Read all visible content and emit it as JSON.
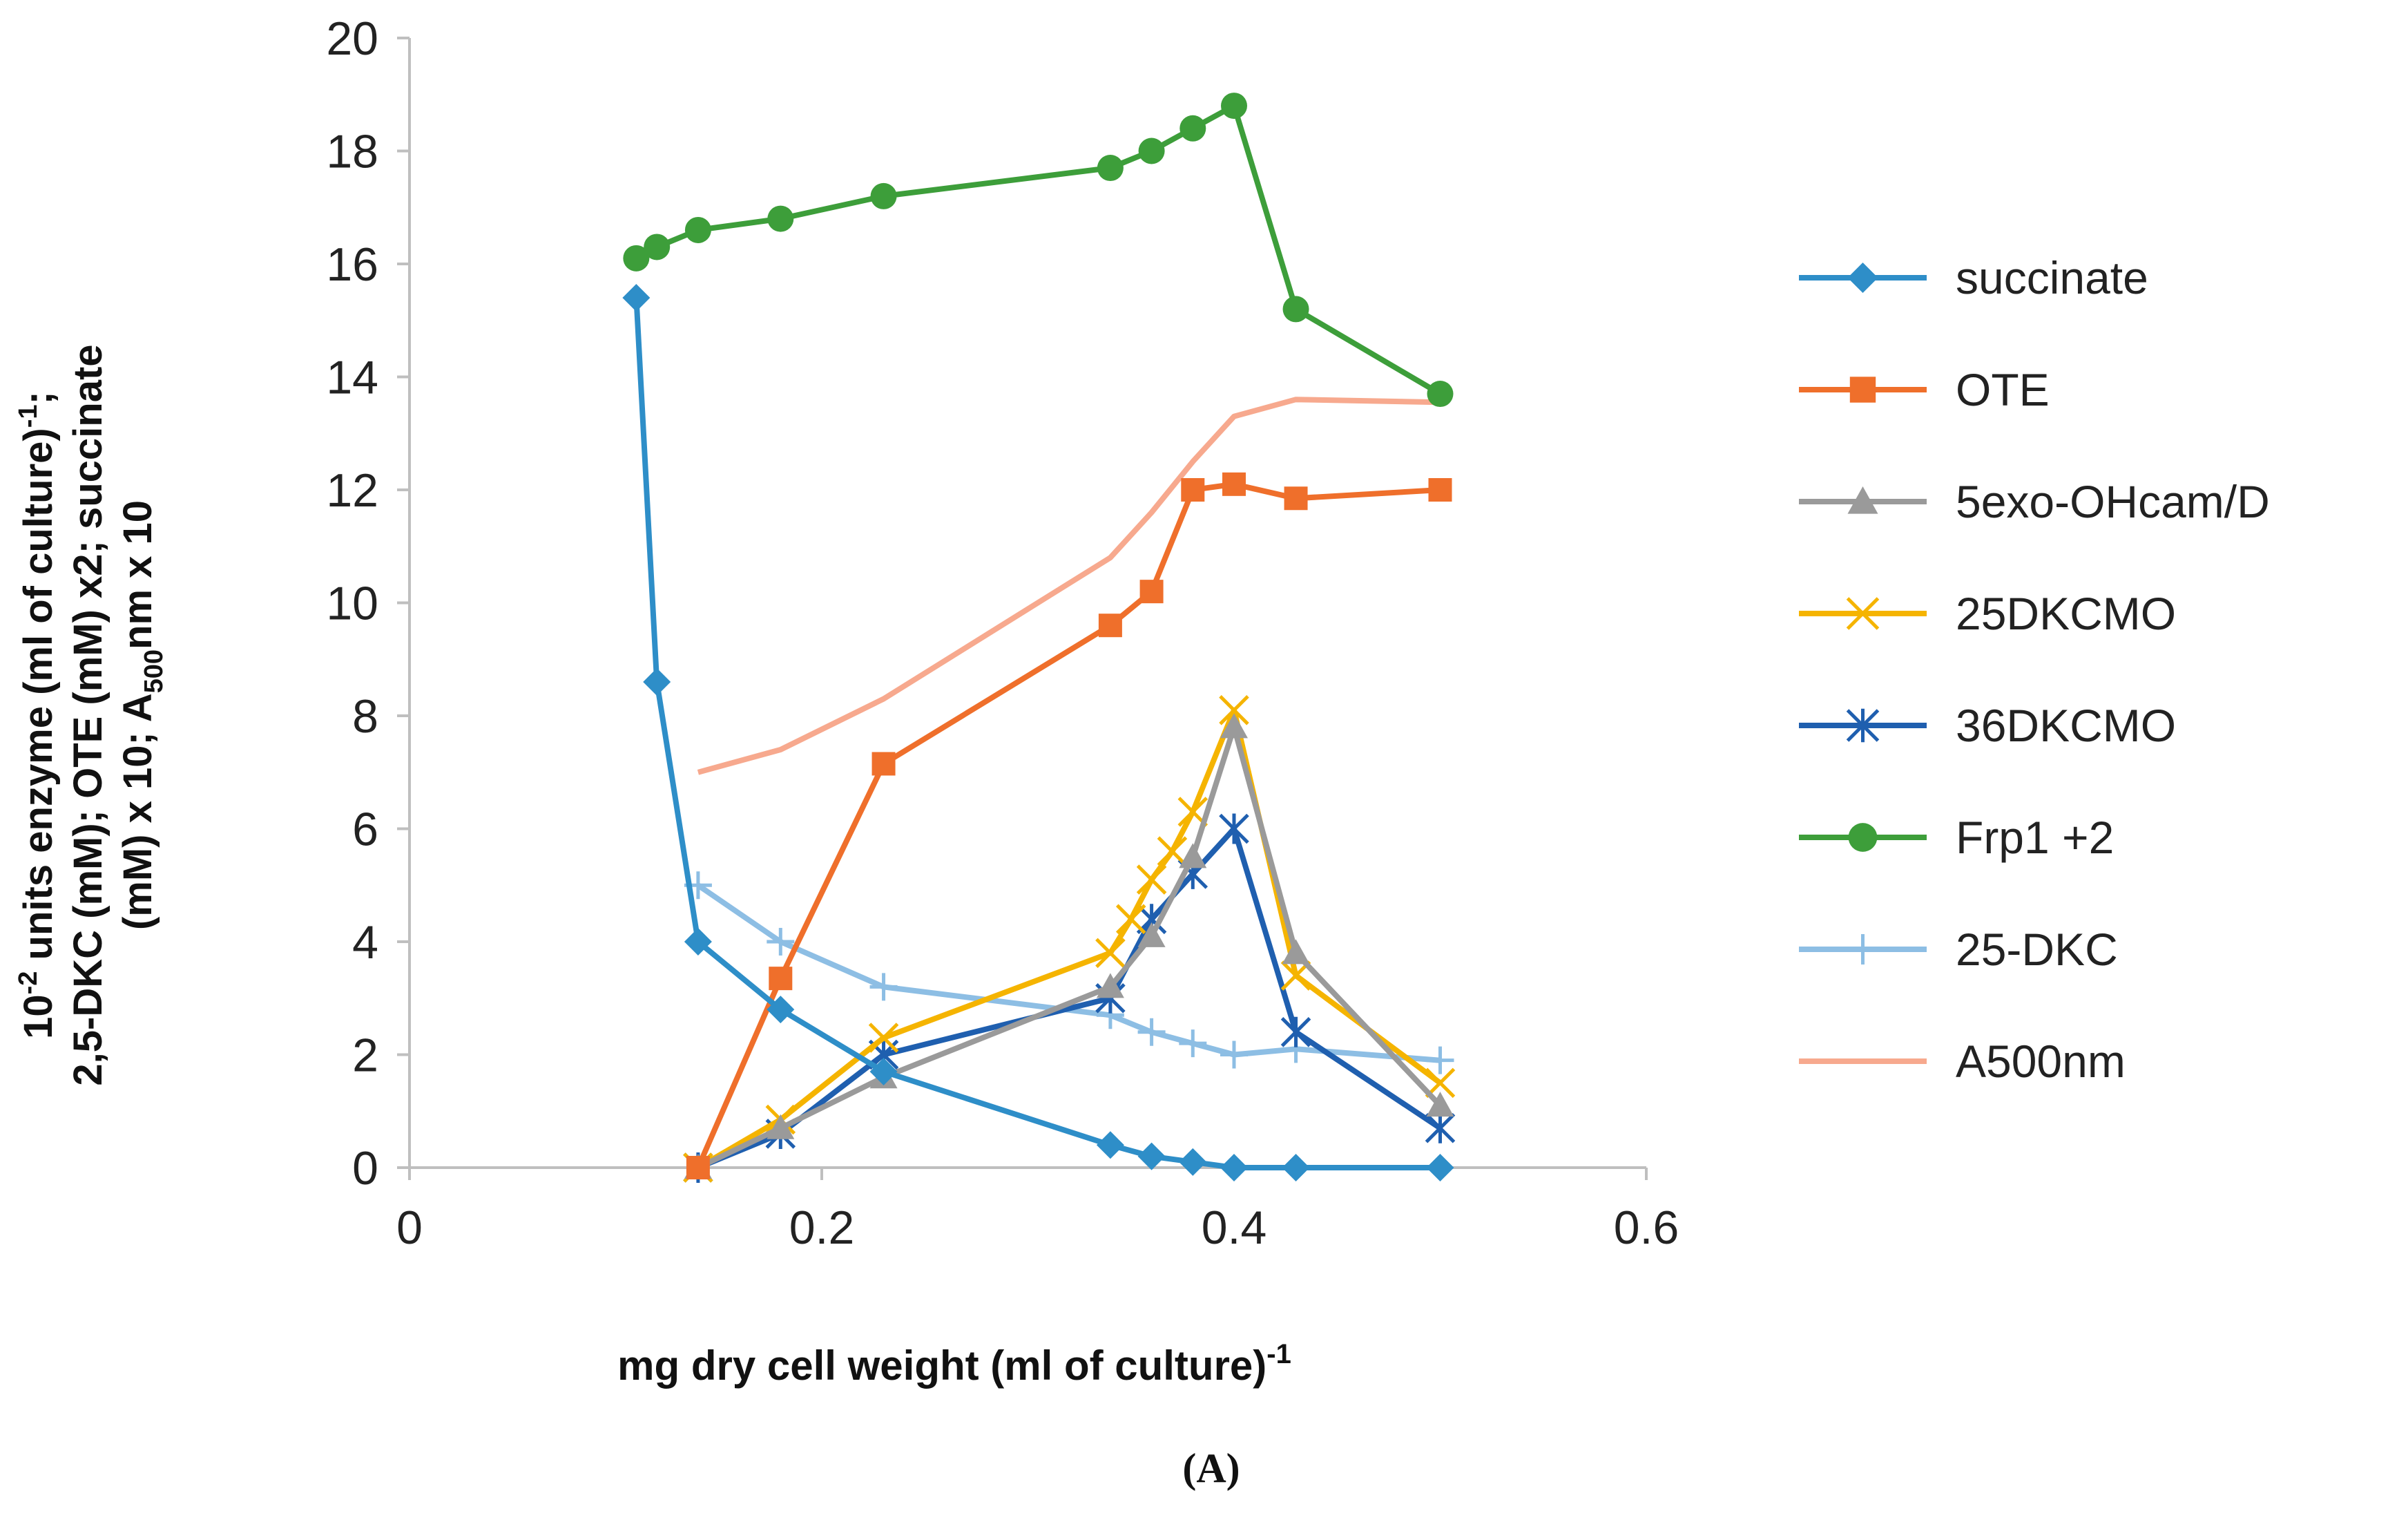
{
  "chart_data": {
    "type": "line",
    "title": "",
    "caption": "(A)",
    "xlabel": {
      "text": "mg dry cell weight (ml of culture)",
      "sup": "-1"
    },
    "ylabel": {
      "line1_sup": "-2",
      "line1_text": " units enzyme (ml of culture)",
      "line1_sup2": "-1",
      "line1_end": ";",
      "line2": "2,5-DKC (mM); OTE (mM) x2; succinate",
      "line3_start": "(mM) x 10; A",
      "line3_sub": "500",
      "line3_end": "nm x 10",
      "ten": "10"
    },
    "xlim": [
      0,
      0.6
    ],
    "ylim": [
      0,
      20
    ],
    "xticks": [
      "0",
      "0.2",
      "0.4",
      "0.6"
    ],
    "yticks": [
      "0",
      "2",
      "4",
      "6",
      "8",
      "10",
      "12",
      "14",
      "16",
      "18",
      "20"
    ],
    "legend_position": "right",
    "series": [
      {
        "name": "succinate",
        "color": "#2E8EC8",
        "marker": "diamond",
        "x": [
          0.11,
          0.12,
          0.14,
          0.18,
          0.23,
          0.34,
          0.36,
          0.38,
          0.4,
          0.43,
          0.5
        ],
        "y": [
          15.4,
          8.6,
          4.0,
          2.8,
          1.7,
          0.4,
          0.2,
          0.1,
          0.0,
          0.0,
          0.0
        ]
      },
      {
        "name": "OTE",
        "color": "#EF6F2B",
        "marker": "square",
        "x": [
          0.14,
          0.18,
          0.23,
          0.34,
          0.36,
          0.38,
          0.4,
          0.43,
          0.5
        ],
        "y": [
          0.0,
          3.35,
          7.15,
          9.6,
          10.2,
          12.0,
          12.1,
          11.85,
          12.0
        ]
      },
      {
        "name": "5exo-OHcam/D",
        "color": "#9A9A9A",
        "marker": "triangle",
        "x": [
          0.14,
          0.18,
          0.23,
          0.34,
          0.36,
          0.38,
          0.4,
          0.43,
          0.5
        ],
        "y": [
          0.0,
          0.7,
          1.6,
          3.2,
          4.1,
          5.5,
          7.8,
          3.8,
          1.1
        ]
      },
      {
        "name": "25DKCMO",
        "color": "#F5B400",
        "marker": "x",
        "x": [
          0.14,
          0.18,
          0.23,
          0.34,
          0.35,
          0.36,
          0.37,
          0.38,
          0.4,
          0.43,
          0.5
        ],
        "y": [
          0.0,
          0.85,
          2.3,
          3.8,
          4.4,
          5.1,
          5.6,
          6.3,
          8.1,
          3.4,
          1.5
        ]
      },
      {
        "name": "36DKCMO",
        "color": "#1F5FAF",
        "marker": "asterisk",
        "x": [
          0.14,
          0.18,
          0.23,
          0.34,
          0.36,
          0.38,
          0.4,
          0.43,
          0.5
        ],
        "y": [
          0.0,
          0.6,
          2.0,
          3.0,
          4.4,
          5.2,
          6.0,
          2.4,
          0.7
        ]
      },
      {
        "name": "Frp1 +2",
        "color": "#3D9E3A",
        "marker": "circle",
        "x": [
          0.11,
          0.12,
          0.14,
          0.18,
          0.23,
          0.34,
          0.36,
          0.38,
          0.4,
          0.43,
          0.5
        ],
        "y": [
          16.1,
          16.3,
          16.6,
          16.8,
          17.2,
          17.7,
          18.0,
          18.4,
          18.8,
          15.2,
          13.7
        ]
      },
      {
        "name": "25-DKC",
        "color": "#8DBEE4",
        "marker": "plus",
        "x": [
          0.14,
          0.18,
          0.23,
          0.34,
          0.36,
          0.38,
          0.4,
          0.43,
          0.5
        ],
        "y": [
          5.0,
          4.0,
          3.2,
          2.7,
          2.4,
          2.2,
          2.0,
          2.1,
          1.9
        ]
      },
      {
        "name": "A500nm",
        "color": "#F7A98E",
        "marker": "none",
        "x": [
          0.14,
          0.18,
          0.23,
          0.34,
          0.36,
          0.38,
          0.4,
          0.43,
          0.5
        ],
        "y": [
          7.0,
          7.4,
          8.3,
          10.8,
          11.6,
          12.5,
          13.3,
          13.6,
          13.55
        ]
      }
    ]
  }
}
